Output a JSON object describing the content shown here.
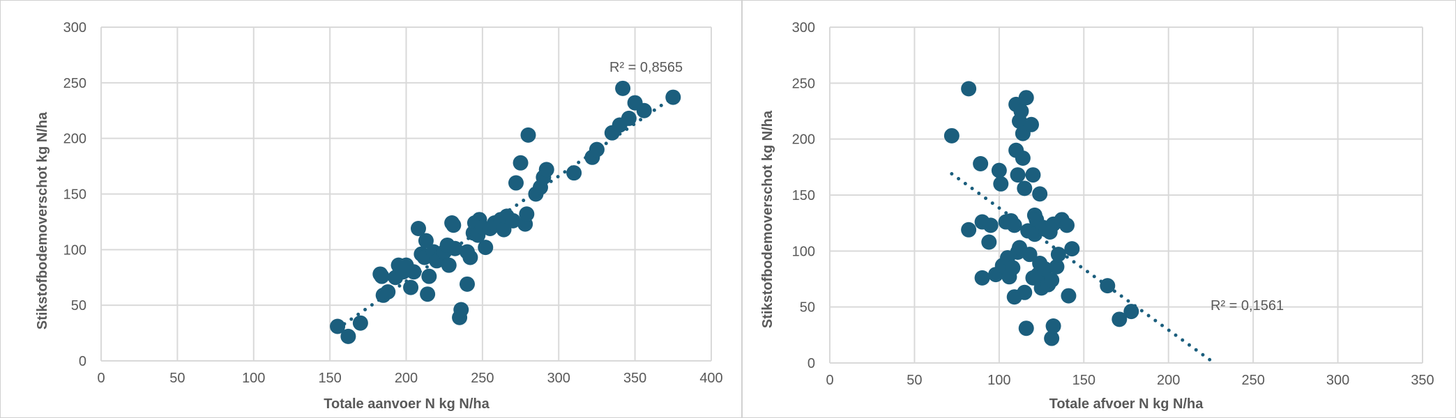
{
  "chart_data": [
    {
      "type": "scatter",
      "xlabel": "Totale aanvoer N kg N/ha",
      "ylabel": "Stikstofbodemoverschot kg N/ha",
      "xlim": [
        0,
        400
      ],
      "ylim": [
        0,
        300
      ],
      "xticks": [
        "0",
        "50",
        "100",
        "150",
        "200",
        "250",
        "300",
        "350",
        "400"
      ],
      "yticks": [
        "0",
        "50",
        "100",
        "150",
        "200",
        "250",
        "300"
      ],
      "grid": true,
      "marker_color": "#1b5e7d",
      "trendline": {
        "type": "linear",
        "style": "dotted",
        "from": [
          155,
          29
        ],
        "to": [
          375,
          237
        ]
      },
      "r2_label": "R² = 0,8565",
      "points": [
        [
          155,
          31
        ],
        [
          162,
          22
        ],
        [
          170,
          34
        ],
        [
          183,
          78
        ],
        [
          184,
          76
        ],
        [
          185,
          59
        ],
        [
          188,
          62
        ],
        [
          193,
          75
        ],
        [
          195,
          86
        ],
        [
          198,
          80
        ],
        [
          200,
          86
        ],
        [
          203,
          66
        ],
        [
          205,
          80
        ],
        [
          208,
          119
        ],
        [
          210,
          96
        ],
        [
          212,
          93
        ],
        [
          213,
          108
        ],
        [
          214,
          60
        ],
        [
          215,
          76
        ],
        [
          218,
          98
        ],
        [
          220,
          90
        ],
        [
          222,
          92
        ],
        [
          225,
          98
        ],
        [
          227,
          104
        ],
        [
          228,
          86
        ],
        [
          230,
          124
        ],
        [
          231,
          122
        ],
        [
          232,
          101
        ],
        [
          235,
          39
        ],
        [
          236,
          46
        ],
        [
          240,
          69
        ],
        [
          240,
          98
        ],
        [
          242,
          93
        ],
        [
          244,
          115
        ],
        [
          245,
          124
        ],
        [
          247,
          113
        ],
        [
          248,
          127
        ],
        [
          250,
          120
        ],
        [
          252,
          102
        ],
        [
          255,
          119
        ],
        [
          258,
          124
        ],
        [
          262,
          127
        ],
        [
          264,
          118
        ],
        [
          266,
          130
        ],
        [
          270,
          126
        ],
        [
          272,
          160
        ],
        [
          275,
          178
        ],
        [
          278,
          123
        ],
        [
          279,
          132
        ],
        [
          280,
          203
        ],
        [
          285,
          150
        ],
        [
          288,
          156
        ],
        [
          290,
          165
        ],
        [
          292,
          172
        ],
        [
          310,
          169
        ],
        [
          322,
          183
        ],
        [
          325,
          190
        ],
        [
          335,
          205
        ],
        [
          340,
          212
        ],
        [
          342,
          245
        ],
        [
          346,
          218
        ],
        [
          350,
          232
        ],
        [
          356,
          225
        ],
        [
          375,
          237
        ]
      ]
    },
    {
      "type": "scatter",
      "xlabel": "Totale afvoer N kg N/ha",
      "ylabel": "Stikstofbodemoverschot kg N/ha",
      "xlim": [
        0,
        350
      ],
      "ylim": [
        0,
        300
      ],
      "xticks": [
        "0",
        "50",
        "100",
        "150",
        "200",
        "250",
        "300",
        "350"
      ],
      "yticks": [
        "0",
        "50",
        "100",
        "150",
        "200",
        "250",
        "300"
      ],
      "grid": true,
      "marker_color": "#1b5e7d",
      "trendline": {
        "type": "linear",
        "style": "dotted",
        "from": [
          72,
          169
        ],
        "to": [
          227,
          0
        ]
      },
      "r2_label": "R² = 0,1561",
      "points": [
        [
          72,
          203
        ],
        [
          82,
          245
        ],
        [
          82,
          119
        ],
        [
          89,
          178
        ],
        [
          90,
          126
        ],
        [
          90,
          76
        ],
        [
          94,
          108
        ],
        [
          95,
          123
        ],
        [
          98,
          79
        ],
        [
          100,
          172
        ],
        [
          101,
          160
        ],
        [
          102,
          87
        ],
        [
          104,
          126
        ],
        [
          105,
          94
        ],
        [
          106,
          77
        ],
        [
          107,
          127
        ],
        [
          108,
          85
        ],
        [
          109,
          59
        ],
        [
          109,
          123
        ],
        [
          110,
          231
        ],
        [
          110,
          190
        ],
        [
          111,
          168
        ],
        [
          111,
          99
        ],
        [
          112,
          103
        ],
        [
          112,
          216
        ],
        [
          113,
          225
        ],
        [
          114,
          205
        ],
        [
          114,
          183
        ],
        [
          115,
          156
        ],
        [
          115,
          63
        ],
        [
          116,
          31
        ],
        [
          116,
          237
        ],
        [
          117,
          118
        ],
        [
          118,
          97
        ],
        [
          119,
          213
        ],
        [
          120,
          76
        ],
        [
          120,
          168
        ],
        [
          121,
          132
        ],
        [
          121,
          115
        ],
        [
          122,
          128
        ],
        [
          123,
          79
        ],
        [
          124,
          151
        ],
        [
          124,
          89
        ],
        [
          125,
          67
        ],
        [
          126,
          121
        ],
        [
          127,
          84
        ],
        [
          128,
          119
        ],
        [
          129,
          70
        ],
        [
          130,
          117
        ],
        [
          131,
          74
        ],
        [
          131,
          22
        ],
        [
          132,
          33
        ],
        [
          132,
          124
        ],
        [
          134,
          86
        ],
        [
          135,
          97
        ],
        [
          137,
          128
        ],
        [
          140,
          123
        ],
        [
          141,
          60
        ],
        [
          143,
          102
        ],
        [
          164,
          69
        ],
        [
          171,
          39
        ],
        [
          178,
          46
        ]
      ]
    }
  ]
}
